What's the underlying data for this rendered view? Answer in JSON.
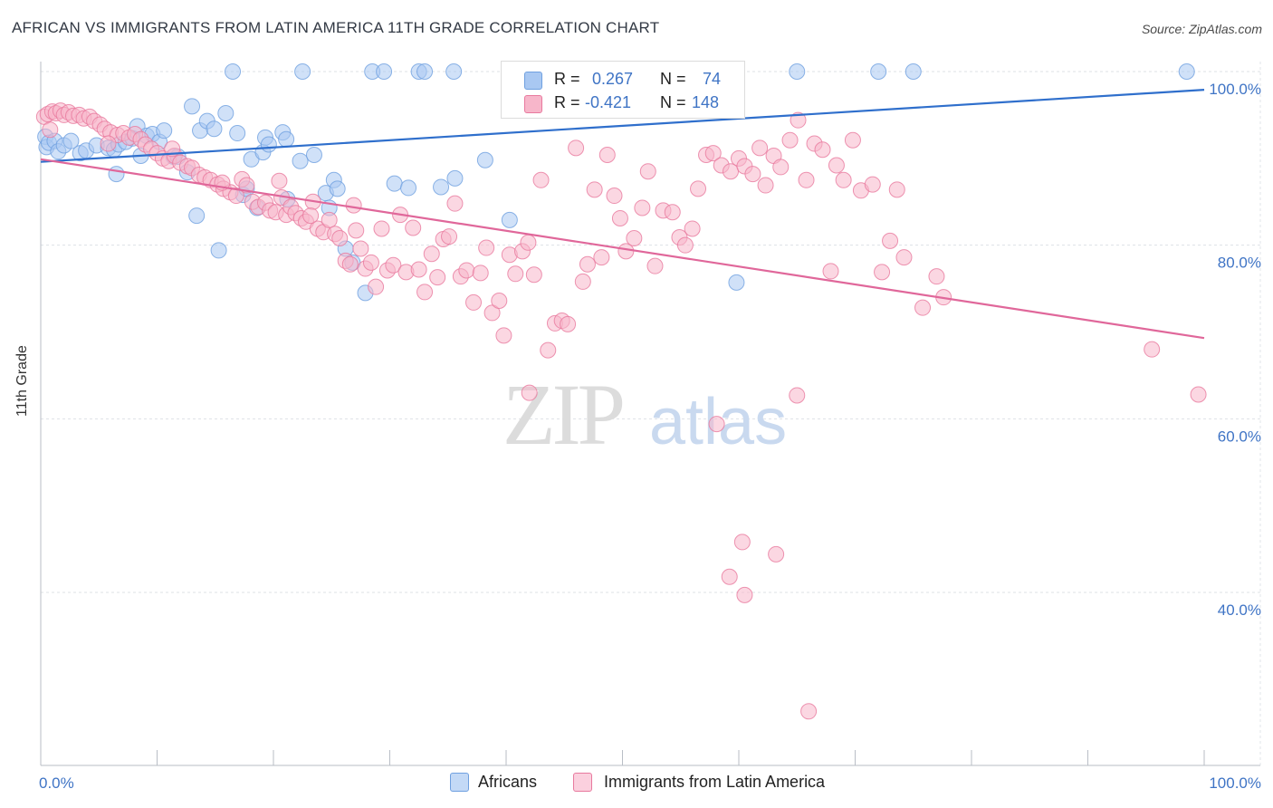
{
  "header": {
    "title": "AFRICAN VS IMMIGRANTS FROM LATIN AMERICA 11TH GRADE CORRELATION CHART",
    "source": "Source: ZipAtlas.com"
  },
  "watermark": {
    "zip": "ZIP",
    "atlas": "atlas"
  },
  "legend": {
    "r_label": "R =",
    "n_label": "N =",
    "rows": [
      {
        "r": "0.267",
        "n": "74",
        "color": "#a9c8f2"
      },
      {
        "r": "-0.421",
        "n": "148",
        "color": "#f7b6ca"
      }
    ]
  },
  "bottom_legend": {
    "items": [
      {
        "label": "Africans",
        "color": "#a9c8f2"
      },
      {
        "label": "Immigrants from Latin America",
        "color": "#f7b6ca"
      }
    ]
  },
  "chart_data": {
    "type": "scatter",
    "title": "AFRICAN VS IMMIGRANTS FROM LATIN AMERICA 11TH GRADE CORRELATION CHART",
    "xlabel": "",
    "ylabel": "11th Grade",
    "xlim": [
      0,
      100
    ],
    "ylim": [
      20,
      102
    ],
    "x_tick_labels": [
      "0.0%",
      "100.0%"
    ],
    "y_ticks": [
      40,
      60,
      80,
      100
    ],
    "y_tick_labels": [
      "40.0%",
      "60.0%",
      "80.0%",
      "100.0%"
    ],
    "grid": "horizontal dashed",
    "legend_position": "top-center",
    "series": [
      {
        "name": "Africans",
        "color": "#6fa0e0",
        "fill": "#a9c8f2",
        "r": 0.267,
        "n": 74,
        "trend": {
          "x": [
            0,
            100
          ],
          "y": [
            89.6,
            97.9
          ]
        },
        "points": [
          [
            0.4,
            92.5
          ],
          [
            0.5,
            91.3
          ],
          [
            0.7,
            91.8
          ],
          [
            1.2,
            92.0
          ],
          [
            1.5,
            90.8
          ],
          [
            2.0,
            91.5
          ],
          [
            2.6,
            92.0
          ],
          [
            3.4,
            90.6
          ],
          [
            3.9,
            90.9
          ],
          [
            4.8,
            91.5
          ],
          [
            5.8,
            91.2
          ],
          [
            6.3,
            91.0
          ],
          [
            6.5,
            88.2
          ],
          [
            6.7,
            91.6
          ],
          [
            7.3,
            91.9
          ],
          [
            7.9,
            92.3
          ],
          [
            8.3,
            93.7
          ],
          [
            8.6,
            90.3
          ],
          [
            9.1,
            92.6
          ],
          [
            9.6,
            92.8
          ],
          [
            10.2,
            91.9
          ],
          [
            10.6,
            93.2
          ],
          [
            11.4,
            90.2
          ],
          [
            11.8,
            90.2
          ],
          [
            12.6,
            88.4
          ],
          [
            13.0,
            96.0
          ],
          [
            13.4,
            83.4
          ],
          [
            13.7,
            93.2
          ],
          [
            14.3,
            94.3
          ],
          [
            14.9,
            93.4
          ],
          [
            15.3,
            79.4
          ],
          [
            15.9,
            95.2
          ],
          [
            16.9,
            92.9
          ],
          [
            17.4,
            85.8
          ],
          [
            17.7,
            86.5
          ],
          [
            18.1,
            89.9
          ],
          [
            18.6,
            84.3
          ],
          [
            19.1,
            90.7
          ],
          [
            19.3,
            92.4
          ],
          [
            19.6,
            91.6
          ],
          [
            20.8,
            93.0
          ],
          [
            21.1,
            92.2
          ],
          [
            21.2,
            85.3
          ],
          [
            22.3,
            89.7
          ],
          [
            23.5,
            90.4
          ],
          [
            24.5,
            86.0
          ],
          [
            24.8,
            84.3
          ],
          [
            25.2,
            87.5
          ],
          [
            25.5,
            86.5
          ],
          [
            26.2,
            79.6
          ],
          [
            16.5,
            100
          ],
          [
            22.5,
            100
          ],
          [
            28.5,
            100
          ],
          [
            29.5,
            100
          ],
          [
            32.5,
            100
          ],
          [
            33.0,
            100
          ],
          [
            35.5,
            100
          ],
          [
            44.5,
            100
          ],
          [
            65.0,
            100
          ],
          [
            72.0,
            100
          ],
          [
            75.0,
            100
          ],
          [
            98.5,
            100
          ],
          [
            27.9,
            74.5
          ],
          [
            30.4,
            87.1
          ],
          [
            31.6,
            86.6
          ],
          [
            34.4,
            86.7
          ],
          [
            35.6,
            87.7
          ],
          [
            38.2,
            89.8
          ],
          [
            40.3,
            82.9
          ],
          [
            42.8,
            99.1
          ],
          [
            58.0,
            99.5
          ],
          [
            59.2,
            99.0
          ],
          [
            59.8,
            75.7
          ],
          [
            26.8,
            78.0
          ]
        ]
      },
      {
        "name": "Immigrants from Latin America",
        "color": "#e8799e",
        "fill": "#f7b6ca",
        "r": -0.421,
        "n": 148,
        "trend": {
          "x": [
            0,
            100
          ],
          "y": [
            89.9,
            69.3
          ]
        },
        "points": [
          [
            0.3,
            94.8
          ],
          [
            0.6,
            95.1
          ],
          [
            1.0,
            95.4
          ],
          [
            1.3,
            95.2
          ],
          [
            1.7,
            95.5
          ],
          [
            2.0,
            95.0
          ],
          [
            2.4,
            95.3
          ],
          [
            2.8,
            94.9
          ],
          [
            3.3,
            95.0
          ],
          [
            3.7,
            94.6
          ],
          [
            4.2,
            94.8
          ],
          [
            4.6,
            94.3
          ],
          [
            5.1,
            93.9
          ],
          [
            5.5,
            93.4
          ],
          [
            6.0,
            93.0
          ],
          [
            6.6,
            92.7
          ],
          [
            7.1,
            92.9
          ],
          [
            7.6,
            92.4
          ],
          [
            8.1,
            92.8
          ],
          [
            8.6,
            92.2
          ],
          [
            9.0,
            91.6
          ],
          [
            9.5,
            91.1
          ],
          [
            10.0,
            90.6
          ],
          [
            10.5,
            90.0
          ],
          [
            11.0,
            89.7
          ],
          [
            11.5,
            90.3
          ],
          [
            12.0,
            89.5
          ],
          [
            12.6,
            89.1
          ],
          [
            13.0,
            88.9
          ],
          [
            13.6,
            88.1
          ],
          [
            14.1,
            87.8
          ],
          [
            14.6,
            87.5
          ],
          [
            15.2,
            87.0
          ],
          [
            15.7,
            86.5
          ],
          [
            16.3,
            86.1
          ],
          [
            16.8,
            85.7
          ],
          [
            17.3,
            87.6
          ],
          [
            17.7,
            86.9
          ],
          [
            18.2,
            85.0
          ],
          [
            18.7,
            84.4
          ],
          [
            19.3,
            84.9
          ],
          [
            19.7,
            84.0
          ],
          [
            20.2,
            83.8
          ],
          [
            20.7,
            85.5
          ],
          [
            21.1,
            83.5
          ],
          [
            21.5,
            84.4
          ],
          [
            21.9,
            83.7
          ],
          [
            22.4,
            83.1
          ],
          [
            22.8,
            82.7
          ],
          [
            23.4,
            85.0
          ],
          [
            23.8,
            81.9
          ],
          [
            24.3,
            81.5
          ],
          [
            24.8,
            82.9
          ],
          [
            25.3,
            81.3
          ],
          [
            25.7,
            80.8
          ],
          [
            26.2,
            78.2
          ],
          [
            26.6,
            77.8
          ],
          [
            27.1,
            81.7
          ],
          [
            27.5,
            79.6
          ],
          [
            27.9,
            77.3
          ],
          [
            28.4,
            78.0
          ],
          [
            28.8,
            75.2
          ],
          [
            29.3,
            81.9
          ],
          [
            29.8,
            77.1
          ],
          [
            30.3,
            77.7
          ],
          [
            30.9,
            83.5
          ],
          [
            31.4,
            76.9
          ],
          [
            32.0,
            82.0
          ],
          [
            32.5,
            77.2
          ],
          [
            33.0,
            74.6
          ],
          [
            33.6,
            79.0
          ],
          [
            34.1,
            76.3
          ],
          [
            34.6,
            80.7
          ],
          [
            35.1,
            81.0
          ],
          [
            35.6,
            84.8
          ],
          [
            36.1,
            76.4
          ],
          [
            36.6,
            77.1
          ],
          [
            37.2,
            73.4
          ],
          [
            37.8,
            76.8
          ],
          [
            38.3,
            79.7
          ],
          [
            38.8,
            72.2
          ],
          [
            39.4,
            73.6
          ],
          [
            39.8,
            69.6
          ],
          [
            40.3,
            78.9
          ],
          [
            40.8,
            76.7
          ],
          [
            41.4,
            79.3
          ],
          [
            41.9,
            80.3
          ],
          [
            42.4,
            76.6
          ],
          [
            43.0,
            87.5
          ],
          [
            43.6,
            67.9
          ],
          [
            44.2,
            71.0
          ],
          [
            44.8,
            71.3
          ],
          [
            45.3,
            70.9
          ],
          [
            46.0,
            91.2
          ],
          [
            46.6,
            75.8
          ],
          [
            47.0,
            77.8
          ],
          [
            47.6,
            86.4
          ],
          [
            48.2,
            78.6
          ],
          [
            48.7,
            90.4
          ],
          [
            49.3,
            85.7
          ],
          [
            49.8,
            83.1
          ],
          [
            50.3,
            79.3
          ],
          [
            51.0,
            80.8
          ],
          [
            51.7,
            84.3
          ],
          [
            52.2,
            88.5
          ],
          [
            52.8,
            77.6
          ],
          [
            53.5,
            84.0
          ],
          [
            54.3,
            83.8
          ],
          [
            54.9,
            80.9
          ],
          [
            55.4,
            80.0
          ],
          [
            56.0,
            81.9
          ],
          [
            56.5,
            86.5
          ],
          [
            57.2,
            90.4
          ],
          [
            57.8,
            90.6
          ],
          [
            58.5,
            89.2
          ],
          [
            59.3,
            88.5
          ],
          [
            60.0,
            90.0
          ],
          [
            60.5,
            89.1
          ],
          [
            61.2,
            88.2
          ],
          [
            61.8,
            91.2
          ],
          [
            62.3,
            86.9
          ],
          [
            63.0,
            90.3
          ],
          [
            63.6,
            89.0
          ],
          [
            64.4,
            92.1
          ],
          [
            65.1,
            94.4
          ],
          [
            65.8,
            87.5
          ],
          [
            66.5,
            91.7
          ],
          [
            67.2,
            91.0
          ],
          [
            67.9,
            77.0
          ],
          [
            68.4,
            89.2
          ],
          [
            69.0,
            87.5
          ],
          [
            69.8,
            92.1
          ],
          [
            70.5,
            86.3
          ],
          [
            71.5,
            87.0
          ],
          [
            72.3,
            76.9
          ],
          [
            73.0,
            80.5
          ],
          [
            73.6,
            86.4
          ],
          [
            74.2,
            78.6
          ],
          [
            75.8,
            72.8
          ],
          [
            77.0,
            76.4
          ],
          [
            77.6,
            74.0
          ],
          [
            58.1,
            59.4
          ],
          [
            59.2,
            41.8
          ],
          [
            60.3,
            45.8
          ],
          [
            60.5,
            39.7
          ],
          [
            63.2,
            44.4
          ],
          [
            65.0,
            62.7
          ],
          [
            66.0,
            26.3
          ],
          [
            42.0,
            63.0
          ],
          [
            95.5,
            68.0
          ],
          [
            99.5,
            62.8
          ],
          [
            0.8,
            93.3
          ],
          [
            5.8,
            91.7
          ],
          [
            11.3,
            91.1
          ],
          [
            15.6,
            87.2
          ],
          [
            20.5,
            87.4
          ],
          [
            23.2,
            83.4
          ],
          [
            26.9,
            84.6
          ]
        ]
      }
    ]
  }
}
